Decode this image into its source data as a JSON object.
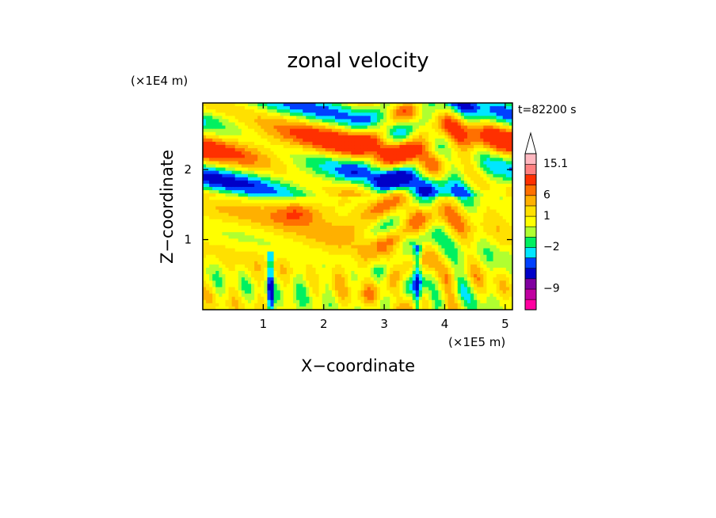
{
  "chart_data": {
    "type": "heatmap",
    "title": "zonal velocity",
    "xlabel": "X−coordinate",
    "ylabel": "Z−coordinate",
    "x_unit": "(×1E5 m)",
    "y_unit": "(×1E4 m)",
    "time_label": "t=82200 s",
    "xlim": [
      0,
      5.12
    ],
    "ylim": [
      0,
      2.95
    ],
    "x_ticks": [
      "1",
      "2",
      "3",
      "4",
      "5"
    ],
    "y_ticks": [
      "1",
      "2"
    ],
    "colorbar": {
      "labels": [
        "15.1",
        "6",
        "1",
        "−2",
        "−9"
      ],
      "levels": [
        {
          "color": "#ff00a0"
        },
        {
          "color": "#c000a0"
        },
        {
          "color": "#8000a0"
        },
        {
          "color": "#0000c8"
        },
        {
          "color": "#0040ff"
        },
        {
          "color": "#00e6ff"
        },
        {
          "color": "#00f060"
        },
        {
          "color": "#b0ff30"
        },
        {
          "color": "#ffff00"
        },
        {
          "color": "#ffe000"
        },
        {
          "color": "#ffb000"
        },
        {
          "color": "#ff7000"
        },
        {
          "color": "#ff3000"
        },
        {
          "color": "#ff8080"
        },
        {
          "color": "#ffb8c0"
        }
      ]
    },
    "field_colors": {
      "strong_positive": "#ff7000",
      "positive": "#ffb000",
      "weak_positive": "#ffff00",
      "neutral": "#b0ff30",
      "weak_negative": "#00f060",
      "negative": "#00e6ff",
      "strong_negative": "#0000c8"
    }
  }
}
